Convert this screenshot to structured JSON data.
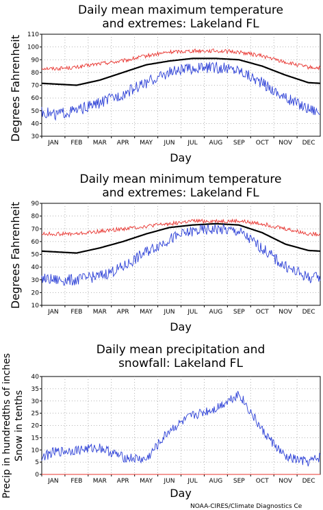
{
  "credit": "NOAA-CIRES/Climate Diagnostics Ce",
  "colors": {
    "max_extreme": "#e8332e",
    "mean": "#000000",
    "min_extreme": "#2b3fd6",
    "precip": "#2b3fd6",
    "snow": "#e8332e",
    "grid": "#9a9a9a"
  },
  "chart_data": [
    {
      "type": "line",
      "title_lines": [
        "Daily mean maximum temperature",
        "and extremes: Lakeland FL"
      ],
      "xlabel": "Day",
      "ylabel_lines": [
        "Degrees Fahrenheit"
      ],
      "categories": [
        "JAN",
        "FEB",
        "MAR",
        "APR",
        "MAY",
        "JUN",
        "JUL",
        "AUG",
        "SEP",
        "OCT",
        "NOV",
        "DEC"
      ],
      "ylim": [
        30,
        110
      ],
      "yticks": [
        30,
        40,
        50,
        60,
        70,
        80,
        90,
        100,
        110
      ],
      "grid": true,
      "series": [
        {
          "role": "max_extreme",
          "month_values": [
            83,
            84,
            87,
            89,
            93,
            96,
            97,
            97,
            96,
            93,
            88,
            84
          ],
          "noise": 1.5
        },
        {
          "role": "mean",
          "month_values": [
            71,
            70,
            74,
            80,
            86,
            89,
            91,
            91,
            90,
            85,
            78,
            72
          ],
          "noise": 0
        },
        {
          "role": "min_extreme",
          "month_values": [
            47,
            50,
            56,
            63,
            72,
            80,
            83,
            84,
            82,
            72,
            60,
            52
          ],
          "noise": 4.5
        }
      ]
    },
    {
      "type": "line",
      "title_lines": [
        "Daily mean minimum temperature",
        "and extremes: Lakeland FL"
      ],
      "xlabel": "Day",
      "ylabel_lines": [
        "Degrees Fahrenheit"
      ],
      "categories": [
        "JAN",
        "FEB",
        "MAR",
        "APR",
        "MAY",
        "JUN",
        "JUL",
        "AUG",
        "SEP",
        "OCT",
        "NOV",
        "DEC"
      ],
      "ylim": [
        10,
        90
      ],
      "yticks": [
        10,
        20,
        30,
        40,
        50,
        60,
        70,
        80,
        90
      ],
      "grid": true,
      "series": [
        {
          "role": "max_extreme",
          "month_values": [
            66,
            66,
            68,
            70,
            72,
            74,
            76,
            76,
            76,
            74,
            70,
            66
          ],
          "noise": 1.5
        },
        {
          "role": "mean",
          "month_values": [
            52,
            51,
            55,
            60,
            66,
            71,
            73,
            74,
            73,
            67,
            58,
            53
          ],
          "noise": 0
        },
        {
          "role": "min_extreme",
          "month_values": [
            30,
            30,
            33,
            40,
            52,
            62,
            68,
            70,
            68,
            55,
            40,
            32
          ],
          "noise": 4.5
        }
      ]
    },
    {
      "type": "line",
      "title_lines": [
        "Daily mean precipitation and",
        "snowfall: Lakeland FL"
      ],
      "xlabel": "Day",
      "ylabel_lines": [
        "Precip in hundredths of inches",
        "Snow in tenths"
      ],
      "categories": [
        "JAN",
        "FEB",
        "MAR",
        "APR",
        "MAY",
        "JUN",
        "JUL",
        "AUG",
        "SEP",
        "OCT",
        "NOV",
        "DEC"
      ],
      "ylim": [
        0,
        40
      ],
      "yticks": [
        0,
        5,
        10,
        15,
        20,
        25,
        30,
        35,
        40
      ],
      "grid": true,
      "series": [
        {
          "role": "precip",
          "month_values": [
            9,
            10,
            11,
            7,
            6,
            18,
            24,
            27,
            33,
            18,
            7,
            5
          ],
          "noise": 2
        },
        {
          "role": "snow",
          "month_values": [
            0,
            0,
            0,
            0,
            0,
            0,
            0,
            0,
            0,
            0,
            0,
            0
          ],
          "noise": 0
        }
      ]
    }
  ]
}
